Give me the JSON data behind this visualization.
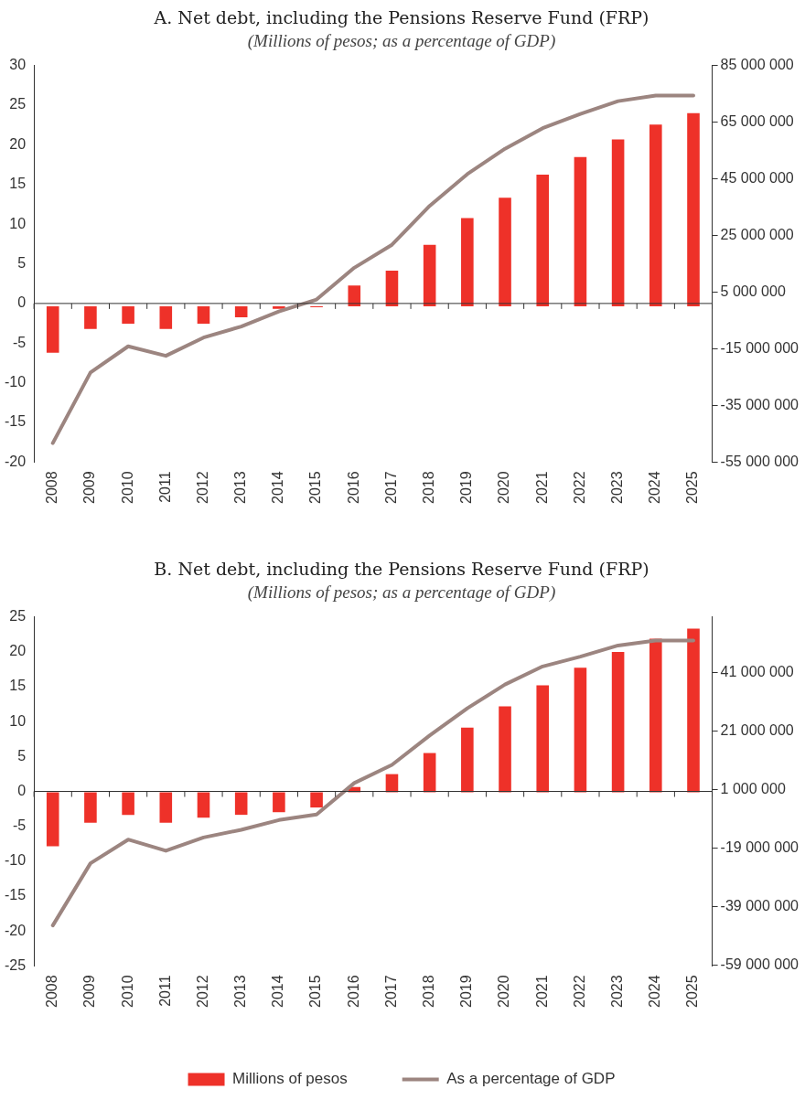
{
  "chart_data": [
    {
      "type": "bar",
      "title": "A. Net debt, including the Pensions Reserve Fund (FRP)",
      "subtitle": "(Millions of pesos; as a percentage of GDP)",
      "categories": [
        "2008",
        "2009",
        "2010",
        "2011",
        "2012",
        "2013",
        "2014",
        "2015",
        "2016",
        "2017",
        "2018",
        "2019",
        "2020",
        "2021",
        "2022",
        "2023",
        "2024",
        "2025"
      ],
      "series": [
        {
          "axis": "y2",
          "color": "#ee3129",
          "values": [
            -16400000,
            -8000000,
            -6100000,
            -8000000,
            -6100000,
            -3900000,
            -900000,
            -300000,
            7300000,
            12600000,
            21700000,
            31100000,
            38300000,
            46500000,
            52700000,
            58900000,
            64100000,
            68200000
          ]
        },
        {
          "type": "line",
          "axis": "y",
          "color": "#9c8580",
          "values": [
            -17.6,
            -8.7,
            -5.4,
            -6.6,
            -4.3,
            -2.9,
            -1.0,
            0.5,
            4.5,
            7.4,
            12.3,
            16.3,
            19.5,
            22.1,
            23.9,
            25.5,
            26.2,
            26.2
          ]
        }
      ],
      "ylim": [
        -20,
        30
      ],
      "yticks": [
        -20,
        -15,
        -10,
        -5,
        0,
        5,
        10,
        15,
        20,
        25,
        30
      ],
      "y2lim": [
        -55000000,
        85000000
      ],
      "y2ticks": [
        {
          "value": -55000000,
          "label": "-55 000 000"
        },
        {
          "value": -35000000,
          "label": "-35 000 000"
        },
        {
          "value": -15000000,
          "label": "-15 000 000"
        },
        {
          "value": 5000000,
          "label": "5 000 000"
        },
        {
          "value": 25000000,
          "label": "25 000 000"
        },
        {
          "value": 45000000,
          "label": "45 000 000"
        },
        {
          "value": 65000000,
          "label": "65 000 000"
        },
        {
          "value": 85000000,
          "label": "85 000 000"
        }
      ],
      "marker": "none",
      "legend": false
    },
    {
      "type": "bar",
      "title": "B. Net debt, including the Pensions Reserve Fund (FRP)",
      "subtitle": "(Millions of pesos; as a percentage of GDP)",
      "categories": [
        "2008",
        "2009",
        "2010",
        "2011",
        "2012",
        "2013",
        "2014",
        "2015",
        "2016",
        "2017",
        "2018",
        "2019",
        "2020",
        "2021",
        "2022",
        "2023",
        "2024",
        "2025"
      ],
      "series": [
        {
          "axis": "y2",
          "name": "Millions of pesos",
          "color": "#ee3129",
          "values": [
            -18400000,
            -10400000,
            -7700000,
            -10400000,
            -8700000,
            -7700000,
            -6800000,
            -5200000,
            1800000,
            6200000,
            13400000,
            22100000,
            29300000,
            36500000,
            42500000,
            47900000,
            52400000,
            55900000
          ]
        },
        {
          "type": "line",
          "axis": "y",
          "name": "As a percentage of GDP",
          "color": "#9c8580",
          "values": [
            -19.2,
            -10.3,
            -6.9,
            -8.5,
            -6.6,
            -5.5,
            -4.1,
            -3.3,
            1.2,
            3.8,
            8.0,
            11.9,
            15.3,
            17.9,
            19.3,
            20.9,
            21.6,
            21.6
          ]
        }
      ],
      "ylim": [
        -25,
        25
      ],
      "yticks": [
        -25,
        -20,
        -15,
        -10,
        -5,
        0,
        5,
        10,
        15,
        20,
        25
      ],
      "y2lim": [
        -59300000,
        59900000
      ],
      "y2ticks": [
        {
          "value": -59000000,
          "label": "-59 000 000"
        },
        {
          "value": -39000000,
          "label": "-39 000 000"
        },
        {
          "value": -19000000,
          "label": "-19 000 000"
        },
        {
          "value": 1000000,
          "label": "1 000 000"
        },
        {
          "value": 21000000,
          "label": "21 000 000"
        },
        {
          "value": 41000000,
          "label": "41 000 000"
        }
      ],
      "marker": "none",
      "legend": "bottom"
    }
  ]
}
